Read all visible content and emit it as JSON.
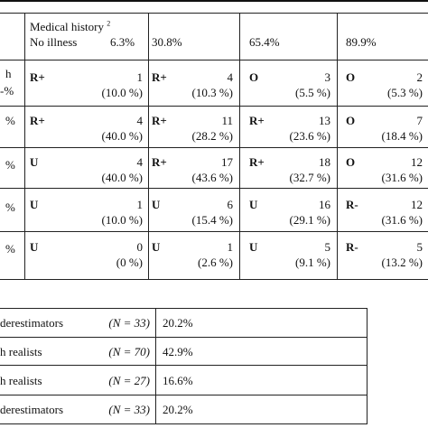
{
  "header": {
    "medical_history": "Medical history",
    "medical_history_sup": "2",
    "col1_label": "No illness",
    "col1_pct": "6.3%",
    "col2_pct": "30.8%",
    "col3_pct": "65.4%",
    "col4_pct": "89.9%"
  },
  "row_stubs": [
    "h",
    "%",
    "%",
    "%",
    "%"
  ],
  "row_stub_prefix": [
    "",
    "-%",
    "",
    "",
    ""
  ],
  "rows": [
    [
      {
        "code": "R+",
        "n": "1",
        "pct": "(10.0 %)"
      },
      {
        "code": "R+",
        "n": "4",
        "pct": "(10.3 %)"
      },
      {
        "code": "O",
        "n": "3",
        "pct": "(5.5 %)"
      },
      {
        "code": "O",
        "n": "2",
        "pct": "(5.3 %)"
      }
    ],
    [
      {
        "code": "R+",
        "n": "4",
        "pct": "(40.0 %)"
      },
      {
        "code": "R+",
        "n": "11",
        "pct": "(28.2 %)"
      },
      {
        "code": "R+",
        "n": "13",
        "pct": "(23.6 %)"
      },
      {
        "code": "O",
        "n": "7",
        "pct": "(18.4 %)"
      }
    ],
    [
      {
        "code": "U",
        "n": "4",
        "pct": "(40.0 %)"
      },
      {
        "code": "R+",
        "n": "17",
        "pct": "(43.6 %)"
      },
      {
        "code": "R+",
        "n": "18",
        "pct": "(32.7 %)"
      },
      {
        "code": "O",
        "n": "12",
        "pct": "(31.6 %)"
      }
    ],
    [
      {
        "code": "U",
        "n": "1",
        "pct": "(10.0 %)"
      },
      {
        "code": "U",
        "n": "6",
        "pct": "(15.4 %)"
      },
      {
        "code": "U",
        "n": "16",
        "pct": "(29.1 %)"
      },
      {
        "code": "R-",
        "n": "12",
        "pct": "(31.6 %)"
      }
    ],
    [
      {
        "code": "U",
        "n": "0",
        "pct": "(0 %)"
      },
      {
        "code": "U",
        "n": "1",
        "pct": "(2.6 %)"
      },
      {
        "code": "U",
        "n": "5",
        "pct": "(9.1 %)"
      },
      {
        "code": "R-",
        "n": "5",
        "pct": "(13.2 %)"
      }
    ]
  ],
  "summary": [
    {
      "label": "derestimators",
      "n": "(N = 33)",
      "pct": "20.2%"
    },
    {
      "label": "h realists",
      "n": "(N = 70)",
      "pct": "42.9%"
    },
    {
      "label": "h realists",
      "n": "(N = 27)",
      "pct": "16.6%"
    },
    {
      "label": "derestimators",
      "n": "(N = 33)",
      "pct": "20.2%"
    }
  ]
}
